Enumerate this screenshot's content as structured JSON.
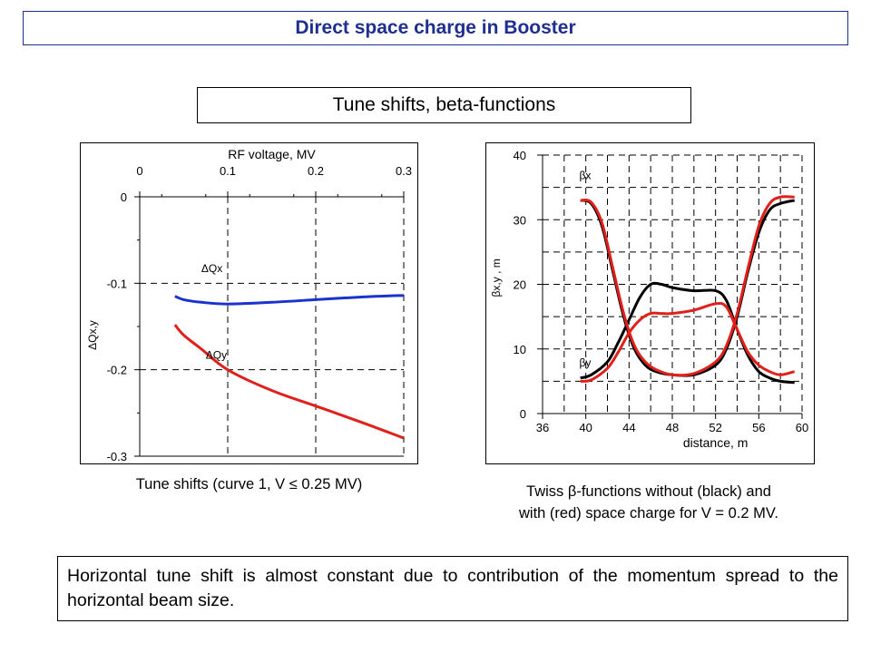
{
  "header": {
    "title": "Direct space charge in Booster"
  },
  "subheader": {
    "title": "Tune shifts, beta-functions"
  },
  "caption_left": "Tune shifts (curve 1, V ≤ 0.25 MV)",
  "caption_right": {
    "line1": "Twiss  β-functions without (black) and",
    "line2": "with (red) space charge for V = 0.2 MV."
  },
  "note": "Horizontal tune shift is almost constant due to contribution of the momentum spread to the horizontal beam size.",
  "chart_data": [
    {
      "type": "line",
      "title": "",
      "xlabel": "RF voltage, MV",
      "ylabel": "ΔQx,y",
      "xlim": [
        0,
        0.3
      ],
      "ylim": [
        -0.3,
        0
      ],
      "x_ticks": [
        "0",
        "0.1",
        "0.2",
        "0.3"
      ],
      "y_ticks": [
        "0",
        "-0.1",
        "-0.2",
        "-0.3"
      ],
      "x_axis_position": "top",
      "grid": true,
      "series": [
        {
          "name": "ΔQx",
          "color": "#1a33cc",
          "x": [
            0.04,
            0.05,
            0.07,
            0.1,
            0.15,
            0.2,
            0.25,
            0.3
          ],
          "y": [
            -0.115,
            -0.119,
            -0.122,
            -0.124,
            -0.122,
            -0.119,
            -0.116,
            -0.114
          ]
        },
        {
          "name": "ΔQy",
          "color": "#e0201b",
          "x": [
            0.04,
            0.05,
            0.07,
            0.1,
            0.15,
            0.2,
            0.25,
            0.3
          ],
          "y": [
            -0.148,
            -0.16,
            -0.176,
            -0.2,
            -0.224,
            -0.242,
            -0.26,
            -0.279
          ]
        }
      ]
    },
    {
      "type": "line",
      "title": "",
      "xlabel": "distance, m",
      "ylabel": "βx,y , m",
      "xlim": [
        36,
        60
      ],
      "ylim": [
        0,
        40
      ],
      "x_ticks": [
        "36",
        "40",
        "44",
        "48",
        "52",
        "56",
        "60"
      ],
      "y_ticks": [
        "0",
        "10",
        "20",
        "30",
        "40"
      ],
      "grid": true,
      "annotations": [
        "βx",
        "βy"
      ],
      "series": [
        {
          "color": "#000000",
          "x": [
            39.5,
            40.5,
            42,
            43,
            44,
            45,
            46,
            47,
            48,
            50,
            52,
            53,
            54,
            55,
            56,
            57,
            58,
            59.3
          ],
          "y": [
            5.5,
            6,
            8,
            11,
            14.5,
            18,
            20,
            20,
            19.5,
            19,
            19,
            17.5,
            13,
            9,
            6.5,
            5.5,
            5,
            4.8
          ]
        },
        {
          "color": "#000000",
          "x": [
            39.5,
            40.5,
            41.5,
            42.5,
            43.5,
            44.5,
            45.5,
            46.5,
            48,
            50,
            52,
            53,
            54,
            55,
            56,
            57,
            58,
            59.3
          ],
          "y": [
            33,
            32.5,
            29,
            22,
            15,
            10,
            7.5,
            6.5,
            6,
            6,
            7.5,
            10,
            15,
            22,
            28,
            31.5,
            32.5,
            33
          ]
        },
        {
          "color": "#e0201b",
          "x": [
            39.5,
            40.5,
            41.5,
            42.5,
            43.5,
            44.5,
            45.5,
            46.5,
            48,
            50,
            52,
            53,
            54,
            55,
            56,
            57,
            58,
            59.3
          ],
          "y": [
            33,
            32.7,
            29.5,
            22.5,
            15.5,
            10.5,
            8,
            6.8,
            6,
            6.2,
            8,
            10.5,
            15.5,
            22.5,
            29,
            32.5,
            33.5,
            33.5
          ]
        },
        {
          "color": "#e0201b",
          "x": [
            39.5,
            40.5,
            42,
            43,
            44,
            45,
            46,
            47,
            48,
            50,
            52,
            53,
            54,
            55,
            56,
            57,
            58,
            59.3
          ],
          "y": [
            5,
            5.2,
            7,
            9.5,
            12.5,
            14.5,
            15.5,
            15.5,
            15.5,
            16,
            17,
            16.5,
            13,
            9.5,
            7.5,
            6.5,
            6,
            6.5
          ]
        }
      ]
    }
  ]
}
